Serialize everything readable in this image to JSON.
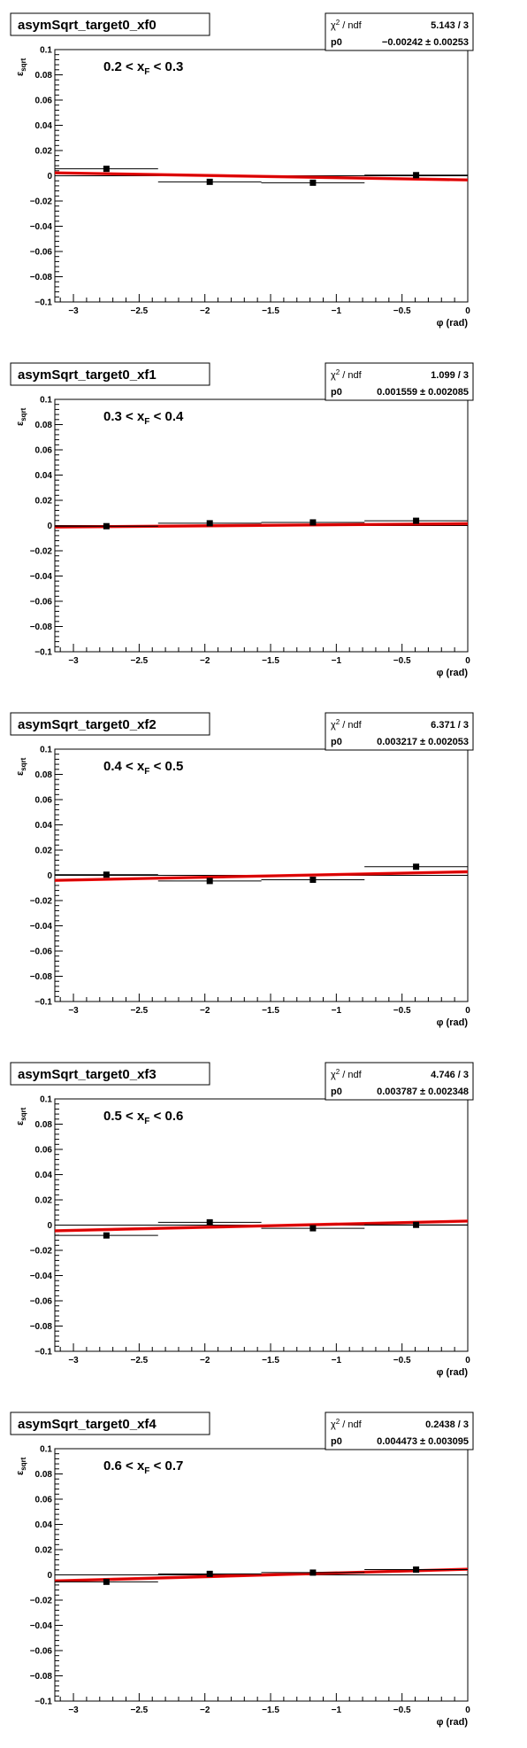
{
  "chart_data": [
    {
      "type": "scatter",
      "title": "asymSqrt_target0_xf0",
      "annotation": {
        "lo": "0.2",
        "hi": "0.3"
      },
      "xlabel": "φ (rad)",
      "ylabel": "ε",
      "ylabel_sub": "sqrt",
      "xlim": [
        -3.1416,
        0
      ],
      "ylim": [
        -0.1,
        0.1
      ],
      "x_ticks": [
        -3,
        -2.5,
        -2,
        -1.5,
        -1,
        -0.5,
        0
      ],
      "x_tick_labels": [
        "−3",
        "−2.5",
        "−2",
        "−1.5",
        "−1",
        "−0.5",
        "0"
      ],
      "y_ticks": [
        -0.1,
        -0.08,
        -0.06,
        -0.04,
        -0.02,
        0,
        0.02,
        0.04,
        0.06,
        0.08,
        0.1
      ],
      "y_tick_labels": [
        "−0.1",
        "−0.08",
        "−0.06",
        "−0.04",
        "−0.02",
        "0",
        "0.02",
        "0.04",
        "0.06",
        "0.08",
        "0.1"
      ],
      "points": [
        {
          "x": -2.749,
          "y": 0.0055,
          "xerr": 0.393,
          "yerr": 0.002
        },
        {
          "x": -1.963,
          "y": -0.0048,
          "xerr": 0.393,
          "yerr": 0.002
        },
        {
          "x": -1.178,
          "y": -0.0055,
          "xerr": 0.393,
          "yerr": 0.002
        },
        {
          "x": -0.393,
          "y": 0.0005,
          "xerr": 0.393,
          "yerr": 0.002
        }
      ],
      "fit": {
        "y0": 0.0023,
        "y1": -0.0033,
        "band": 0.0012
      },
      "stats": {
        "chi2_label": "χ",
        "chi2_sup": "2",
        "chi2_rest": " / ndf",
        "chi2_value": "5.143 / 3",
        "p0_label": "p0",
        "p0_value": "−0.00242 ± 0.00253"
      }
    },
    {
      "type": "scatter",
      "title": "asymSqrt_target0_xf1",
      "annotation": {
        "lo": "0.3",
        "hi": "0.4"
      },
      "xlabel": "φ (rad)",
      "ylabel": "ε",
      "ylabel_sub": "sqrt",
      "xlim": [
        -3.1416,
        0
      ],
      "ylim": [
        -0.1,
        0.1
      ],
      "x_ticks": [
        -3,
        -2.5,
        -2,
        -1.5,
        -1,
        -0.5,
        0
      ],
      "x_tick_labels": [
        "−3",
        "−2.5",
        "−2",
        "−1.5",
        "−1",
        "−0.5",
        "0"
      ],
      "y_ticks": [
        -0.1,
        -0.08,
        -0.06,
        -0.04,
        -0.02,
        0,
        0.02,
        0.04,
        0.06,
        0.08,
        0.1
      ],
      "y_tick_labels": [
        "−0.1",
        "−0.08",
        "−0.06",
        "−0.04",
        "−0.02",
        "0",
        "0.02",
        "0.04",
        "0.06",
        "0.08",
        "0.1"
      ],
      "points": [
        {
          "x": -2.749,
          "y": -0.0005,
          "xerr": 0.393,
          "yerr": 0.002
        },
        {
          "x": -1.963,
          "y": 0.0018,
          "xerr": 0.393,
          "yerr": 0.002
        },
        {
          "x": -1.178,
          "y": 0.0025,
          "xerr": 0.393,
          "yerr": 0.002
        },
        {
          "x": -0.393,
          "y": 0.0038,
          "xerr": 0.393,
          "yerr": 0.002
        }
      ],
      "fit": {
        "y0": -0.0012,
        "y1": 0.0015,
        "band": 0.0012
      },
      "stats": {
        "chi2_label": "χ",
        "chi2_sup": "2",
        "chi2_rest": " / ndf",
        "chi2_value": "1.099 / 3",
        "p0_label": "p0",
        "p0_value": "0.001559 ± 0.002085"
      }
    },
    {
      "type": "scatter",
      "title": "asymSqrt_target0_xf2",
      "annotation": {
        "lo": "0.4",
        "hi": "0.5"
      },
      "xlabel": "φ (rad)",
      "ylabel": "ε",
      "ylabel_sub": "sqrt",
      "xlim": [
        -3.1416,
        0
      ],
      "ylim": [
        -0.1,
        0.1
      ],
      "x_ticks": [
        -3,
        -2.5,
        -2,
        -1.5,
        -1,
        -0.5,
        0
      ],
      "x_tick_labels": [
        "−3",
        "−2.5",
        "−2",
        "−1.5",
        "−1",
        "−0.5",
        "0"
      ],
      "y_ticks": [
        -0.1,
        -0.08,
        -0.06,
        -0.04,
        -0.02,
        0,
        0.02,
        0.04,
        0.06,
        0.08,
        0.1
      ],
      "y_tick_labels": [
        "−0.1",
        "−0.08",
        "−0.06",
        "−0.04",
        "−0.02",
        "0",
        "0.02",
        "0.04",
        "0.06",
        "0.08",
        "0.1"
      ],
      "points": [
        {
          "x": -2.749,
          "y": 0.0005,
          "xerr": 0.393,
          "yerr": 0.002
        },
        {
          "x": -1.963,
          "y": -0.0045,
          "xerr": 0.393,
          "yerr": 0.002
        },
        {
          "x": -1.178,
          "y": -0.0035,
          "xerr": 0.393,
          "yerr": 0.002
        },
        {
          "x": -0.393,
          "y": 0.0068,
          "xerr": 0.393,
          "yerr": 0.002
        }
      ],
      "fit": {
        "y0": -0.004,
        "y1": 0.0028,
        "band": 0.0012
      },
      "stats": {
        "chi2_label": "χ",
        "chi2_sup": "2",
        "chi2_rest": " / ndf",
        "chi2_value": "6.371 / 3",
        "p0_label": "p0",
        "p0_value": "0.003217 ± 0.002053"
      }
    },
    {
      "type": "scatter",
      "title": "asymSqrt_target0_xf3",
      "annotation": {
        "lo": "0.5",
        "hi": "0.6"
      },
      "xlabel": "φ (rad)",
      "ylabel": "ε",
      "ylabel_sub": "sqrt",
      "xlim": [
        -3.1416,
        0
      ],
      "ylim": [
        -0.1,
        0.1
      ],
      "x_ticks": [
        -3,
        -2.5,
        -2,
        -1.5,
        -1,
        -0.5,
        0
      ],
      "x_tick_labels": [
        "−3",
        "−2.5",
        "−2",
        "−1.5",
        "−1",
        "−0.5",
        "0"
      ],
      "y_ticks": [
        -0.1,
        -0.08,
        -0.06,
        -0.04,
        -0.02,
        0,
        0.02,
        0.04,
        0.06,
        0.08,
        0.1
      ],
      "y_tick_labels": [
        "−0.1",
        "−0.08",
        "−0.06",
        "−0.04",
        "−0.02",
        "0",
        "0.02",
        "0.04",
        "0.06",
        "0.08",
        "0.1"
      ],
      "points": [
        {
          "x": -2.749,
          "y": -0.0082,
          "xerr": 0.393,
          "yerr": 0.002
        },
        {
          "x": -1.963,
          "y": 0.0022,
          "xerr": 0.393,
          "yerr": 0.002
        },
        {
          "x": -1.178,
          "y": -0.0025,
          "xerr": 0.393,
          "yerr": 0.002
        },
        {
          "x": -0.393,
          "y": 0.0002,
          "xerr": 0.393,
          "yerr": 0.002
        }
      ],
      "fit": {
        "y0": -0.0045,
        "y1": 0.0032,
        "band": 0.0012
      },
      "stats": {
        "chi2_label": "χ",
        "chi2_sup": "2",
        "chi2_rest": " / ndf",
        "chi2_value": "4.746 / 3",
        "p0_label": "p0",
        "p0_value": "0.003787 ± 0.002348"
      }
    },
    {
      "type": "scatter",
      "title": "asymSqrt_target0_xf4",
      "annotation": {
        "lo": "0.6",
        "hi": "0.7"
      },
      "xlabel": "φ (rad)",
      "ylabel": "ε",
      "ylabel_sub": "sqrt",
      "xlim": [
        -3.1416,
        0
      ],
      "ylim": [
        -0.1,
        0.1
      ],
      "x_ticks": [
        -3,
        -2.5,
        -2,
        -1.5,
        -1,
        -0.5,
        0
      ],
      "x_tick_labels": [
        "−3",
        "−2.5",
        "−2",
        "−1.5",
        "−1",
        "−0.5",
        "0"
      ],
      "y_ticks": [
        -0.1,
        -0.08,
        -0.06,
        -0.04,
        -0.02,
        0,
        0.02,
        0.04,
        0.06,
        0.08,
        0.1
      ],
      "y_tick_labels": [
        "−0.1",
        "−0.08",
        "−0.06",
        "−0.04",
        "−0.02",
        "0",
        "0.02",
        "0.04",
        "0.06",
        "0.08",
        "0.1"
      ],
      "points": [
        {
          "x": -2.749,
          "y": -0.0055,
          "xerr": 0.393,
          "yerr": 0.002
        },
        {
          "x": -1.963,
          "y": 0.0008,
          "xerr": 0.393,
          "yerr": 0.002
        },
        {
          "x": -1.178,
          "y": 0.0018,
          "xerr": 0.393,
          "yerr": 0.002
        },
        {
          "x": -0.393,
          "y": 0.0042,
          "xerr": 0.393,
          "yerr": 0.002
        }
      ],
      "fit": {
        "y0": -0.0048,
        "y1": 0.0045,
        "band": 0.0012
      },
      "stats": {
        "chi2_label": "χ",
        "chi2_sup": "2",
        "chi2_rest": " / ndf",
        "chi2_value": "0.2438 / 3",
        "p0_label": "p0",
        "p0_value": "0.004473 ± 0.003095"
      }
    }
  ]
}
